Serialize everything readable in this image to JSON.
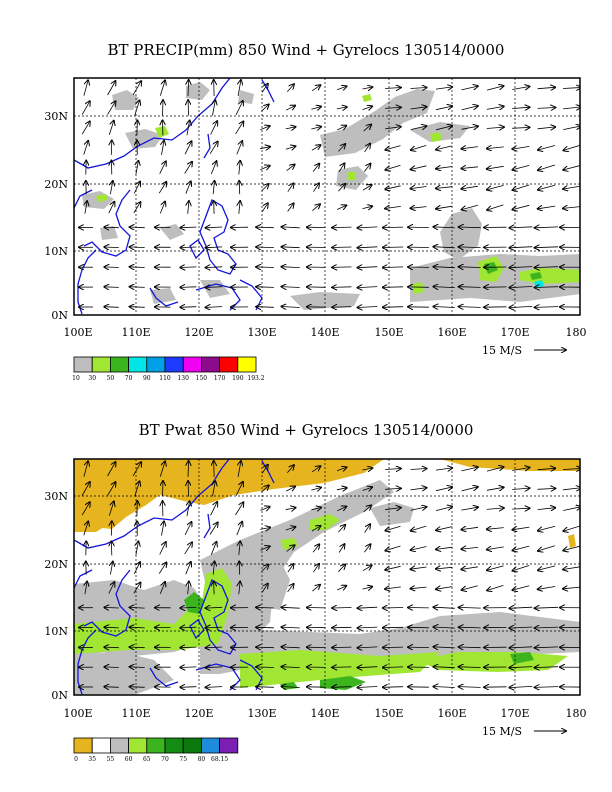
{
  "panels": [
    {
      "title": "BT PRECIP(mm) 850 Wind + Gyrelocs 130514/0000",
      "lat_labels": [
        "30N",
        "20N",
        "10N",
        "0N"
      ],
      "lon_labels": [
        "100E",
        "110E",
        "120E",
        "130E",
        "140E",
        "150E",
        "160E",
        "170E",
        "180"
      ],
      "scale_label": "15 M/S",
      "legend": {
        "colors": [
          "#bebebe",
          "#a0e632",
          "#3cb41e",
          "#00e6e6",
          "#00a0e6",
          "#1e3cff",
          "#f000f0",
          "#8c0a8c",
          "#ff0000",
          "#ffff00"
        ],
        "labels": [
          "10",
          "30",
          "50",
          "70",
          "90",
          "110",
          "130",
          "150",
          "170",
          "190",
          "193.2"
        ]
      }
    },
    {
      "title": "BT Pwat 850 Wind + Gyrelocs 130514/0000",
      "lat_labels": [
        "30N",
        "20N",
        "10N",
        "0N"
      ],
      "lon_labels": [
        "100E",
        "110E",
        "120E",
        "130E",
        "140E",
        "150E",
        "160E",
        "170E",
        "180"
      ],
      "scale_label": "15 M/S",
      "legend": {
        "colors": [
          "#e6b41e",
          "#ffffff",
          "#bebebe",
          "#a0e632",
          "#3cb41e",
          "#148c14",
          "#0a780a",
          "#1e8cdc",
          "#7a1eb4"
        ],
        "labels": [
          "0",
          "35",
          "55",
          "60",
          "65",
          "70",
          "75",
          "80",
          "68.15"
        ]
      }
    }
  ],
  "colors": {
    "coast": "#1414dc",
    "precip_grey": "#bebebe",
    "green": "#a0e632",
    "dgreen": "#3cb41e",
    "cyan": "#00e6e6",
    "gold": "#e6b41e"
  }
}
